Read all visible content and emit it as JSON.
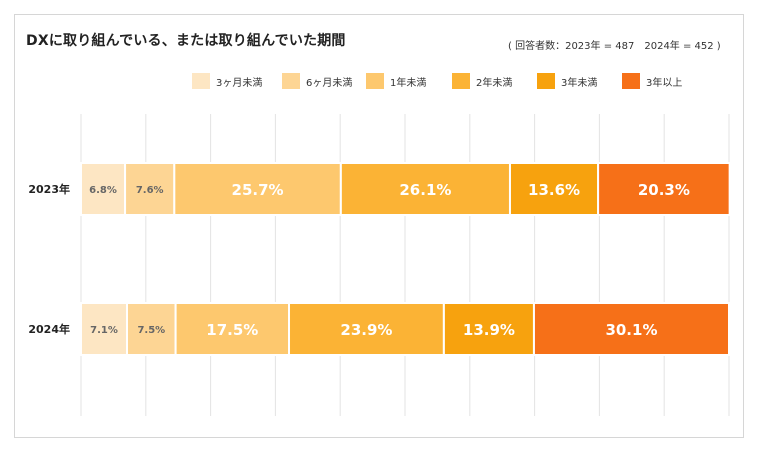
{
  "title": "DXに取り組んでいる、または取り組んでいた期間",
  "note": "( 回答者数：2023年 = 487　2024年 = 452 )",
  "colors": [
    "#fde6c3",
    "#fdd594",
    "#fdc86e",
    "#fbb335",
    "#f7a20e",
    "#f67018"
  ],
  "chart_data": {
    "type": "bar",
    "orientation": "horizontal-stacked-100",
    "categories": [
      "2023年",
      "2024年"
    ],
    "series": [
      {
        "name": "3ヶ月未満",
        "values": [
          6.8,
          7.1
        ]
      },
      {
        "name": "6ヶ月未満",
        "values": [
          7.6,
          7.5
        ]
      },
      {
        "name": "1年未満",
        "values": [
          25.7,
          17.5
        ]
      },
      {
        "name": "2年未満",
        "values": [
          26.1,
          23.9
        ]
      },
      {
        "name": "3年未満",
        "values": [
          13.6,
          13.9
        ]
      },
      {
        "name": "3年以上",
        "values": [
          20.3,
          30.1
        ]
      }
    ],
    "data_labels": [
      [
        "6.8%",
        "7.6%",
        "25.7%",
        "26.1%",
        "13.6%",
        "20.3%"
      ],
      [
        "7.1%",
        "7.5%",
        "17.5%",
        "23.9%",
        "13.9%",
        "30.1%"
      ]
    ],
    "xlim": [
      0,
      100
    ],
    "grid": true,
    "legend_position": "top"
  }
}
